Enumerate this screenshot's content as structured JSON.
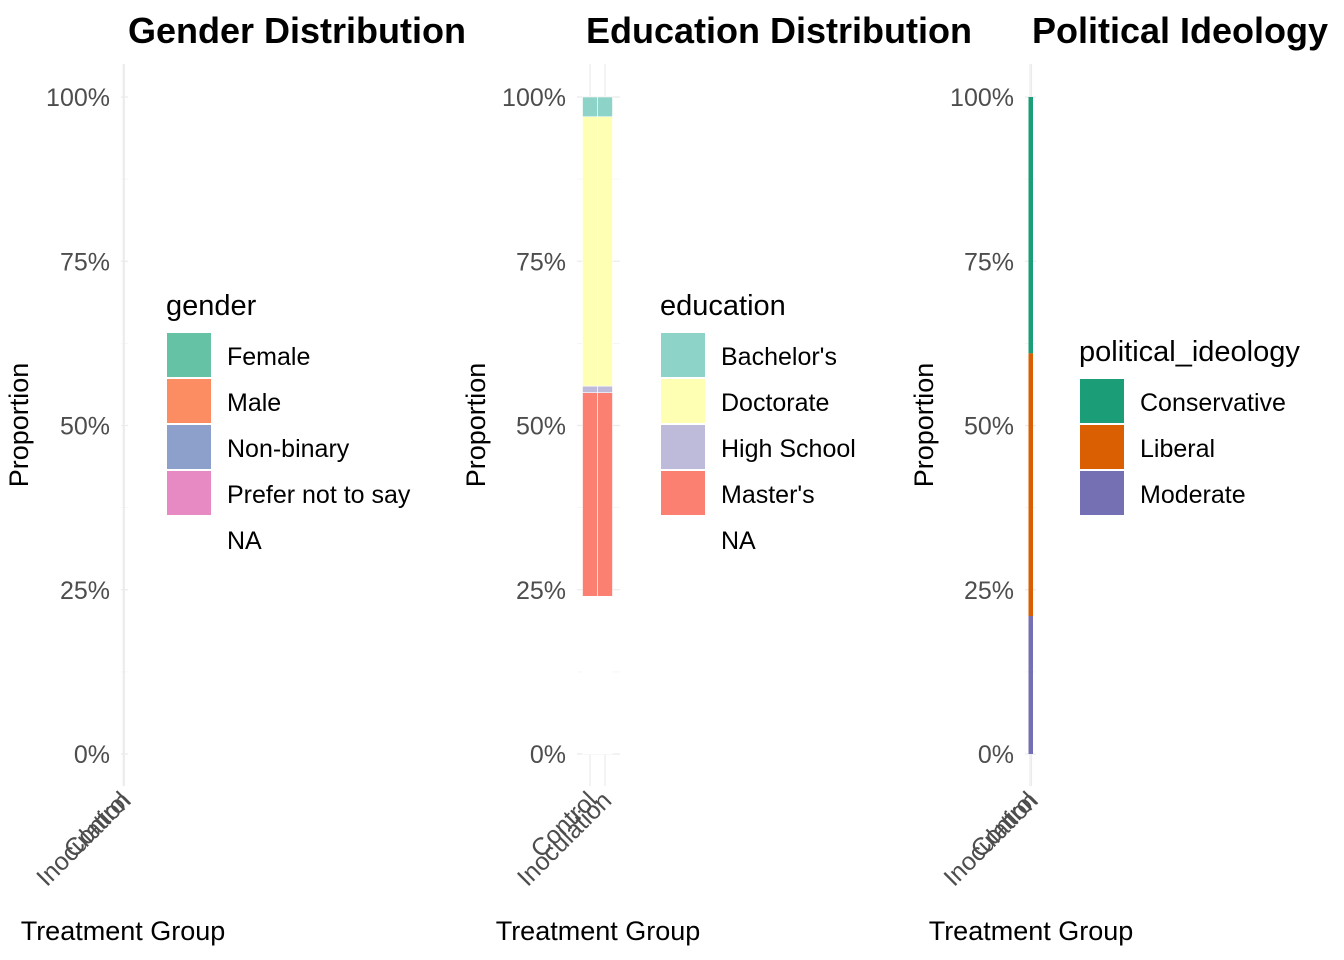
{
  "chart_data": [
    {
      "type": "bar",
      "stacked": true,
      "title": "Gender Distribution",
      "xlabel": "Treatment Group",
      "ylabel": "Proportion",
      "categories": [
        "Control",
        "Inoculation"
      ],
      "y_ticks": [
        "0%",
        "25%",
        "50%",
        "75%",
        "100%"
      ],
      "ylim": [
        0,
        1
      ],
      "legend_title": "gender",
      "legend_position": "right",
      "grid": true,
      "series": [
        {
          "name": "Female",
          "color": "#66c2a5",
          "values": [
            0,
            0
          ]
        },
        {
          "name": "Male",
          "color": "#fc8d62",
          "values": [
            0,
            0
          ]
        },
        {
          "name": "Non-binary",
          "color": "#8da0cb",
          "values": [
            0,
            0
          ]
        },
        {
          "name": "Prefer not to say",
          "color": "#e78ac3",
          "values": [
            0,
            0
          ]
        },
        {
          "name": "NA",
          "color": "#ffffff",
          "values": [
            0,
            0
          ]
        }
      ]
    },
    {
      "type": "bar",
      "stacked": true,
      "title": "Education Distribution",
      "xlabel": "Treatment Group",
      "ylabel": "Proportion",
      "categories": [
        "Control",
        "Inoculation"
      ],
      "y_ticks": [
        "0%",
        "25%",
        "50%",
        "75%",
        "100%"
      ],
      "ylim": [
        0,
        1
      ],
      "legend_title": "education",
      "legend_position": "right",
      "grid": true,
      "series": [
        {
          "name": "Bachelor's",
          "color": "#8dd3c7",
          "values": [
            0.03,
            0.03
          ]
        },
        {
          "name": "Doctorate",
          "color": "#ffffb3",
          "values": [
            0.41,
            0.41
          ]
        },
        {
          "name": "High School",
          "color": "#bebada",
          "values": [
            0.01,
            0.01
          ]
        },
        {
          "name": "Master's",
          "color": "#fb8072",
          "values": [
            0.31,
            0.31
          ]
        },
        {
          "name": "NA",
          "color": "#ffffff",
          "values": [
            0.24,
            0.24
          ]
        }
      ]
    },
    {
      "type": "bar",
      "stacked": true,
      "title": "Political Ideology",
      "xlabel": "Treatment Group",
      "ylabel": "Proportion",
      "categories": [
        "Control",
        "Inoculation"
      ],
      "y_ticks": [
        "0%",
        "25%",
        "50%",
        "75%",
        "100%"
      ],
      "ylim": [
        0,
        1
      ],
      "legend_title": "political_ideology",
      "legend_position": "right",
      "grid": true,
      "series": [
        {
          "name": "Conservative",
          "color": "#1b9e77",
          "values": [
            0.39,
            0.39
          ]
        },
        {
          "name": "Liberal",
          "color": "#d95f02",
          "values": [
            0.4,
            0.4
          ]
        },
        {
          "name": "Moderate",
          "color": "#7570b3",
          "values": [
            0.21,
            0.21
          ]
        }
      ]
    }
  ]
}
